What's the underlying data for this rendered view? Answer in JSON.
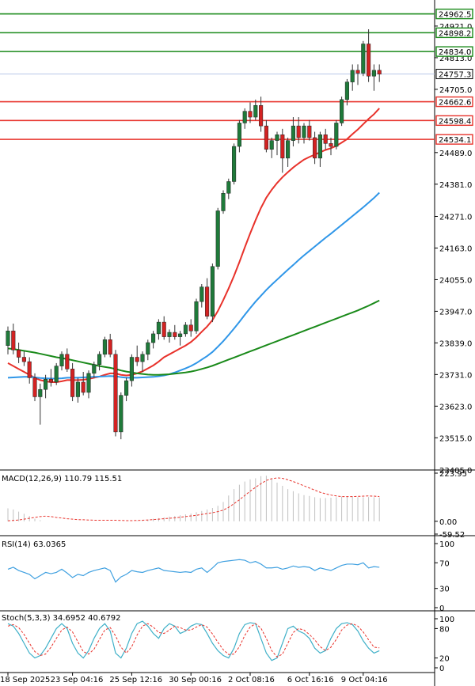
{
  "chart_data": {
    "type": "candlestick",
    "main": {
      "ylim": [
        23405,
        25010
      ],
      "yticks": [
        {
          "v": 24921.0,
          "label": "24921.0"
        },
        {
          "v": 24813.0,
          "label": "24813.0"
        },
        {
          "v": 24705.0,
          "label": "24705.0"
        },
        {
          "v": 24489.0,
          "label": "24489.0"
        },
        {
          "v": 24381.0,
          "label": "24381.0"
        },
        {
          "v": 24271.0,
          "label": "24271.0"
        },
        {
          "v": 24163.0,
          "label": "24163.0"
        },
        {
          "v": 24055.0,
          "label": "24055.0"
        },
        {
          "v": 23947.0,
          "label": "23947.0"
        },
        {
          "v": 23839.0,
          "label": "23839.0"
        },
        {
          "v": 23731.0,
          "label": "23731.0"
        },
        {
          "v": 23623.0,
          "label": "23623.0"
        },
        {
          "v": 23515.0,
          "label": "23515.0"
        },
        {
          "v": 23405.0,
          "label": "23405.0"
        }
      ],
      "resistance_levels": [
        {
          "v": 24962.5,
          "label": "24962.5"
        },
        {
          "v": 24898.2,
          "label": "24898.2"
        },
        {
          "v": 24834.0,
          "label": "24834.0"
        }
      ],
      "support_levels": [
        {
          "v": 24662.6,
          "label": "24662.6"
        },
        {
          "v": 24598.4,
          "label": "24598.4"
        },
        {
          "v": 24534.1,
          "label": "24534.1"
        }
      ],
      "current_price": {
        "v": 24757.3,
        "label": "24757.3"
      },
      "candles": [
        [
          23830,
          23895,
          23800,
          23880
        ],
        [
          23880,
          23905,
          23800,
          23815
        ],
        [
          23815,
          23840,
          23770,
          23790
        ],
        [
          23790,
          23810,
          23760,
          23775
        ],
        [
          23775,
          23790,
          23700,
          23720
        ],
        [
          23720,
          23735,
          23640,
          23655
        ],
        [
          23655,
          23700,
          23560,
          23680
        ],
        [
          23680,
          23730,
          23650,
          23715
        ],
        [
          23715,
          23750,
          23690,
          23705
        ],
        [
          23705,
          23770,
          23695,
          23760
        ],
        [
          23760,
          23810,
          23745,
          23800
        ],
        [
          23800,
          23820,
          23740,
          23750
        ],
        [
          23750,
          23770,
          23640,
          23655
        ],
        [
          23655,
          23720,
          23635,
          23705
        ],
        [
          23705,
          23740,
          23660,
          23670
        ],
        [
          23670,
          23745,
          23650,
          23735
        ],
        [
          23735,
          23775,
          23720,
          23765
        ],
        [
          23765,
          23810,
          23745,
          23800
        ],
        [
          23800,
          23860,
          23790,
          23850
        ],
        [
          23850,
          23870,
          23790,
          23800
        ],
        [
          23800,
          23815,
          23520,
          23535
        ],
        [
          23535,
          23670,
          23510,
          23660
        ],
        [
          23660,
          23720,
          23640,
          23710
        ],
        [
          23710,
          23800,
          23690,
          23790
        ],
        [
          23790,
          23830,
          23760,
          23775
        ],
        [
          23775,
          23810,
          23740,
          23800
        ],
        [
          23800,
          23850,
          23780,
          23840
        ],
        [
          23840,
          23880,
          23820,
          23870
        ],
        [
          23870,
          23920,
          23850,
          23910
        ],
        [
          23910,
          23930,
          23850,
          23860
        ],
        [
          23860,
          23885,
          23840,
          23875
        ],
        [
          23875,
          23900,
          23850,
          23860
        ],
        [
          23860,
          23880,
          23830,
          23870
        ],
        [
          23870,
          23910,
          23860,
          23900
        ],
        [
          23900,
          23920,
          23860,
          23880
        ],
        [
          23880,
          23990,
          23870,
          23980
        ],
        [
          23980,
          24040,
          23960,
          24030
        ],
        [
          24030,
          24060,
          23920,
          23930
        ],
        [
          23930,
          24110,
          23910,
          24100
        ],
        [
          24100,
          24300,
          24090,
          24290
        ],
        [
          24290,
          24360,
          24280,
          24350
        ],
        [
          24350,
          24400,
          24330,
          24390
        ],
        [
          24390,
          24520,
          24380,
          24510
        ],
        [
          24510,
          24600,
          24490,
          24590
        ],
        [
          24590,
          24640,
          24570,
          24630
        ],
        [
          24630,
          24660,
          24590,
          24610
        ],
        [
          24610,
          24670,
          24600,
          24650
        ],
        [
          24650,
          24680,
          24560,
          24580
        ],
        [
          24580,
          24600,
          24490,
          24500
        ],
        [
          24500,
          24540,
          24470,
          24530
        ],
        [
          24530,
          24560,
          24480,
          24550
        ],
        [
          24550,
          24570,
          24420,
          24470
        ],
        [
          24470,
          24540,
          24440,
          24530
        ],
        [
          24530,
          24610,
          24510,
          24580
        ],
        [
          24580,
          24610,
          24520,
          24540
        ],
        [
          24540,
          24590,
          24520,
          24580
        ],
        [
          24580,
          24600,
          24530,
          24540
        ],
        [
          24540,
          24560,
          24450,
          24470
        ],
        [
          24470,
          24560,
          24440,
          24550
        ],
        [
          24550,
          24570,
          24500,
          24520
        ],
        [
          24520,
          24540,
          24480,
          24510
        ],
        [
          24510,
          24600,
          24500,
          24590
        ],
        [
          24590,
          24680,
          24580,
          24670
        ],
        [
          24670,
          24740,
          24650,
          24730
        ],
        [
          24730,
          24790,
          24700,
          24770
        ],
        [
          24770,
          24790,
          24720,
          24760
        ],
        [
          24760,
          24870,
          24750,
          24860
        ],
        [
          24860,
          24910,
          24730,
          24750
        ],
        [
          24750,
          24790,
          24700,
          24770
        ],
        [
          24770,
          24790,
          24730,
          24757
        ]
      ],
      "ma_series": [
        {
          "name": "MA red",
          "color": "#e8322b",
          "values": [
            23770,
            23760,
            23750,
            23740,
            23730,
            23720,
            23712,
            23708,
            23705,
            23705,
            23708,
            23712,
            23712,
            23712,
            23713,
            23716,
            23720,
            23724,
            23730,
            23735,
            23735,
            23730,
            23728,
            23730,
            23735,
            23742,
            23752,
            23762,
            23775,
            23790,
            23800,
            23810,
            23820,
            23830,
            23842,
            23858,
            23877,
            23895,
            23917,
            23948,
            23985,
            24025,
            24068,
            24115,
            24165,
            24213,
            24258,
            24300,
            24335,
            24362,
            24385,
            24405,
            24422,
            24438,
            24452,
            24465,
            24474,
            24482,
            24490,
            24498,
            24504,
            24512,
            24523,
            24535,
            24552,
            24568,
            24586,
            24604,
            24620,
            24640
          ]
        },
        {
          "name": "MA blue",
          "color": "#2f96e8",
          "values": [
            23720,
            23721,
            23722,
            23723,
            23723,
            23721,
            23719,
            23718,
            23717,
            23717,
            23718,
            23720,
            23720,
            23720,
            23721,
            23722,
            23723,
            23724,
            23725,
            23726,
            23725,
            23722,
            23720,
            23720,
            23720,
            23721,
            23722,
            23723,
            23725,
            23728,
            23732,
            23738,
            23745,
            23752,
            23760,
            23770,
            23782,
            23794,
            23808,
            23826,
            23845,
            23866,
            23888,
            23911,
            23935,
            23958,
            23980,
            24000,
            24020,
            24038,
            24055,
            24072,
            24089,
            24105,
            24122,
            24138,
            24153,
            24168,
            24183,
            24198,
            24212,
            24227,
            24242,
            24257,
            24272,
            24287,
            24302,
            24318,
            24334,
            24352
          ]
        },
        {
          "name": "MA green",
          "color": "#1a8a1a",
          "values": [
            23820,
            23818,
            23815,
            23812,
            23809,
            23806,
            23802,
            23798,
            23794,
            23790,
            23787,
            23784,
            23780,
            23776,
            23772,
            23768,
            23764,
            23760,
            23757,
            23754,
            23750,
            23745,
            23741,
            23738,
            23735,
            23733,
            23731,
            23730,
            23730,
            23731,
            23732,
            23734,
            23736,
            23738,
            23741,
            23745,
            23750,
            23755,
            23761,
            23768,
            23775,
            23782,
            23789,
            23796,
            23803,
            23810,
            23817,
            23824,
            23831,
            23838,
            23845,
            23852,
            23859,
            23866,
            23873,
            23880,
            23887,
            23894,
            23901,
            23908,
            23915,
            23922,
            23929,
            23936,
            23943,
            23950,
            23958,
            23966,
            23975,
            23984
          ]
        }
      ],
      "xlabels": [
        {
          "i": 0,
          "label": "18 Sep 2025"
        },
        {
          "i": 12,
          "label": "23 Sep 04:16"
        },
        {
          "i": 23,
          "label": "25 Sep 12:16"
        },
        {
          "i": 34,
          "label": "30 Sep 00:16"
        },
        {
          "i": 45,
          "label": "2 Oct 08:16"
        },
        {
          "i": 56,
          "label": "6 Oct 16:16"
        },
        {
          "i": 66,
          "label": "9 Oct 04:16"
        }
      ]
    },
    "macd": {
      "label": "MACD(12,26,9) 110.79 115.51",
      "ylim": [
        -59.52,
        223.95
      ],
      "yticks": [
        {
          "v": 223.95,
          "label": "223.95"
        },
        {
          "v": 0.0,
          "label": "0.00"
        },
        {
          "v": -59.52,
          "label": "-59.52"
        }
      ],
      "hist": [
        60,
        55,
        45,
        35,
        25,
        12,
        5,
        0,
        0,
        0,
        0,
        0,
        0,
        0,
        0,
        0,
        0,
        0,
        0,
        0,
        0,
        0,
        0,
        0,
        2,
        5,
        8,
        12,
        15,
        18,
        22,
        25,
        28,
        32,
        36,
        42,
        48,
        55,
        62,
        72,
        90,
        120,
        150,
        170,
        185,
        195,
        200,
        210,
        212,
        200,
        180,
        165,
        150,
        140,
        130,
        122,
        118,
        112,
        108,
        108,
        110,
        112,
        115,
        115,
        116,
        112,
        112,
        113,
        112,
        110.79
      ],
      "signal": [
        2,
        4,
        6,
        10,
        14,
        18,
        22,
        24,
        22,
        18,
        15,
        12,
        10,
        8,
        7,
        6,
        5,
        5,
        5,
        5,
        5,
        4,
        3,
        3,
        4,
        5,
        6,
        8,
        10,
        12,
        14,
        16,
        19,
        22,
        25,
        28,
        32,
        36,
        40,
        45,
        52,
        65,
        82,
        100,
        120,
        140,
        158,
        175,
        190,
        198,
        202,
        200,
        193,
        185,
        175,
        165,
        155,
        145,
        135,
        128,
        122,
        118,
        115,
        115,
        115,
        116,
        117,
        118,
        117,
        115.51
      ]
    },
    "rsi": {
      "label": "RSI(14) 63.0365",
      "ylim": [
        0,
        100
      ],
      "yticks": [
        {
          "v": 100,
          "label": "100"
        },
        {
          "v": 70,
          "label": "70"
        },
        {
          "v": 30,
          "label": "30"
        },
        {
          "v": 0,
          "label": "0"
        }
      ],
      "values": [
        60,
        63,
        58,
        55,
        52,
        45,
        50,
        55,
        53,
        55,
        60,
        54,
        47,
        52,
        50,
        55,
        58,
        60,
        62,
        58,
        40,
        48,
        52,
        58,
        56,
        55,
        58,
        60,
        62,
        58,
        57,
        56,
        55,
        56,
        55,
        60,
        62,
        55,
        62,
        70,
        72,
        73,
        74,
        75,
        74,
        70,
        72,
        68,
        62,
        62,
        63,
        60,
        62,
        65,
        63,
        64,
        63,
        58,
        62,
        60,
        58,
        62,
        66,
        68,
        68,
        67,
        70,
        62,
        64,
        63.04
      ]
    },
    "stoch": {
      "label": "Stoch(5,3,3) 34.6952 40.6792",
      "ylim": [
        0,
        100
      ],
      "yticks": [
        {
          "v": 100,
          "label": "100"
        },
        {
          "v": 80,
          "label": "80"
        },
        {
          "v": 20,
          "label": "20"
        },
        {
          "v": 0,
          "label": "0"
        }
      ],
      "k": [
        90,
        85,
        70,
        50,
        30,
        20,
        25,
        40,
        60,
        80,
        90,
        80,
        50,
        30,
        20,
        35,
        60,
        80,
        90,
        75,
        30,
        20,
        40,
        70,
        90,
        95,
        85,
        70,
        60,
        80,
        90,
        85,
        70,
        75,
        85,
        90,
        88,
        70,
        50,
        35,
        25,
        20,
        40,
        70,
        88,
        92,
        90,
        60,
        30,
        15,
        20,
        50,
        80,
        85,
        75,
        70,
        60,
        40,
        30,
        35,
        60,
        80,
        90,
        92,
        88,
        75,
        55,
        40,
        30,
        34.7
      ],
      "d": [
        85,
        88,
        82,
        68,
        50,
        33,
        25,
        28,
        42,
        60,
        77,
        83,
        73,
        53,
        33,
        28,
        38,
        58,
        77,
        82,
        65,
        42,
        30,
        43,
        67,
        85,
        90,
        83,
        72,
        70,
        77,
        85,
        82,
        77,
        77,
        83,
        88,
        83,
        69,
        52,
        37,
        27,
        28,
        43,
        66,
        83,
        90,
        81,
        60,
        35,
        22,
        28,
        50,
        72,
        80,
        77,
        68,
        57,
        43,
        35,
        42,
        58,
        77,
        87,
        90,
        85,
        73,
        57,
        42,
        40.68
      ]
    }
  }
}
